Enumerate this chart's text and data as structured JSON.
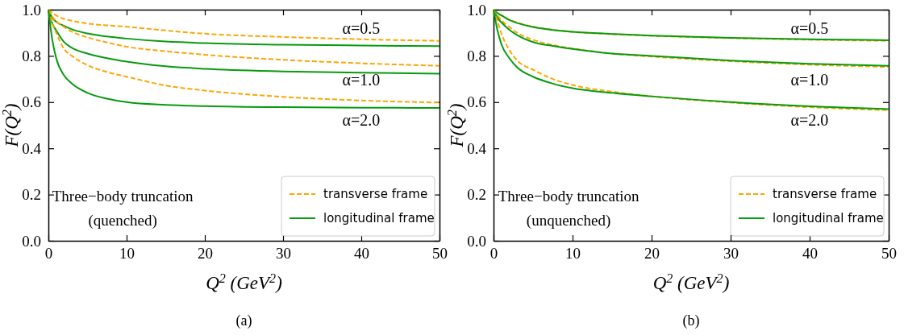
{
  "chart_data": [
    {
      "type": "line",
      "title": "(a)",
      "xlabel": "Q$^{2}$ (GeV$^{2}$)",
      "ylabel": "F(Q$^{2}$)",
      "xlim": [
        0,
        50
      ],
      "ylim": [
        0,
        1
      ],
      "xticks": [
        0,
        10,
        20,
        30,
        40,
        50
      ],
      "yticks": [
        {
          "value": 0,
          "label": "0.0"
        },
        {
          "value": 0.2,
          "label": "0.2"
        },
        {
          "value": 0.4,
          "label": "0.4"
        },
        {
          "value": 0.6,
          "label": "0.6"
        },
        {
          "value": 0.8,
          "label": "0.8"
        },
        {
          "value": 1,
          "label": "1.0"
        }
      ],
      "grid": false,
      "legend": "bottom right",
      "marker": "none",
      "x": [
        0,
        0.5,
        1,
        2,
        3,
        5,
        7.5,
        10,
        15,
        20,
        30,
        40,
        50
      ],
      "series": [
        {
          "name": "transverse frame",
          "color": "#ffa500",
          "line_style": "dashed",
          "values": [
            1,
            0.985,
            0.975,
            0.96,
            0.952,
            0.94,
            0.932,
            0.926,
            0.91,
            0.896,
            0.882,
            0.872,
            0.865
          ]
        },
        {
          "name": "longitudinal frame",
          "color": "#079b0f",
          "line_style": "solid",
          "values": [
            1,
            0.965,
            0.948,
            0.93,
            0.915,
            0.897,
            0.884,
            0.875,
            0.862,
            0.855,
            0.848,
            0.845,
            0.842
          ]
        },
        {
          "color": "#ffa500",
          "line_style": "dashed",
          "values": [
            1,
            0.97,
            0.95,
            0.925,
            0.905,
            0.88,
            0.858,
            0.84,
            0.82,
            0.805,
            0.783,
            0.768,
            0.757
          ]
        },
        {
          "color": "#079b0f",
          "line_style": "solid",
          "values": [
            1,
            0.94,
            0.91,
            0.86,
            0.835,
            0.81,
            0.79,
            0.775,
            0.755,
            0.744,
            0.733,
            0.727,
            0.723
          ]
        },
        {
          "color": "#ffa500",
          "line_style": "dashed",
          "values": [
            1,
            0.94,
            0.9,
            0.83,
            0.8,
            0.76,
            0.73,
            0.71,
            0.672,
            0.65,
            0.623,
            0.607,
            0.598
          ]
        },
        {
          "color": "#079b0f",
          "line_style": "solid",
          "values": [
            1,
            0.87,
            0.79,
            0.716,
            0.68,
            0.64,
            0.615,
            0.6,
            0.588,
            0.583,
            0.578,
            0.576,
            0.575
          ]
        }
      ],
      "annotations": [
        "α=0.5",
        "α=1.0",
        "α=2.0",
        "Three−body truncation",
        "(quenched)"
      ]
    },
    {
      "type": "line",
      "title": "(b)",
      "xlabel": "Q$^{2}$ (GeV$^{2}$)",
      "ylabel": "F(Q$^{2}$)",
      "xlim": [
        0,
        50
      ],
      "ylim": [
        0,
        1
      ],
      "xticks": [
        0,
        10,
        20,
        30,
        40,
        50
      ],
      "yticks": [
        {
          "value": 0,
          "label": "0.0"
        },
        {
          "value": 0.2,
          "label": "0.2"
        },
        {
          "value": 0.4,
          "label": "0.4"
        },
        {
          "value": 0.6,
          "label": "0.6"
        },
        {
          "value": 0.8,
          "label": "0.8"
        },
        {
          "value": 1,
          "label": "1.0"
        }
      ],
      "grid": false,
      "legend": "bottom right",
      "marker": "none",
      "x": [
        0,
        0.5,
        1,
        2,
        3,
        5,
        7.5,
        10,
        15,
        20,
        30,
        40,
        50
      ],
      "series": [
        {
          "name": "transverse frame",
          "color": "#ffa500",
          "line_style": "dashed",
          "values": [
            1,
            0.985,
            0.976,
            0.957,
            0.944,
            0.926,
            0.913,
            0.904,
            0.894,
            0.887,
            0.877,
            0.87,
            0.865
          ]
        },
        {
          "name": "longitudinal frame",
          "color": "#079b0f",
          "line_style": "solid",
          "values": [
            1,
            0.985,
            0.975,
            0.955,
            0.942,
            0.925,
            0.912,
            0.904,
            0.895,
            0.888,
            0.878,
            0.872,
            0.868
          ]
        },
        {
          "color": "#ffa500",
          "line_style": "dashed",
          "values": [
            1,
            0.975,
            0.955,
            0.925,
            0.9,
            0.87,
            0.847,
            0.832,
            0.81,
            0.797,
            0.777,
            0.762,
            0.752
          ]
        },
        {
          "color": "#079b0f",
          "line_style": "solid",
          "values": [
            1,
            0.965,
            0.945,
            0.913,
            0.89,
            0.86,
            0.843,
            0.83,
            0.81,
            0.8,
            0.78,
            0.766,
            0.757
          ]
        },
        {
          "color": "#ffa500",
          "line_style": "dashed",
          "values": [
            1,
            0.95,
            0.896,
            0.826,
            0.78,
            0.74,
            0.7,
            0.674,
            0.645,
            0.625,
            0.598,
            0.578,
            0.565
          ]
        },
        {
          "color": "#079b0f",
          "line_style": "solid",
          "values": [
            1,
            0.91,
            0.85,
            0.79,
            0.75,
            0.71,
            0.68,
            0.66,
            0.64,
            0.625,
            0.6,
            0.582,
            0.57
          ]
        }
      ],
      "annotations": [
        "α=0.5",
        "α=1.0",
        "α=2.0",
        "Three−body truncation",
        "(unquenched)"
      ]
    }
  ]
}
